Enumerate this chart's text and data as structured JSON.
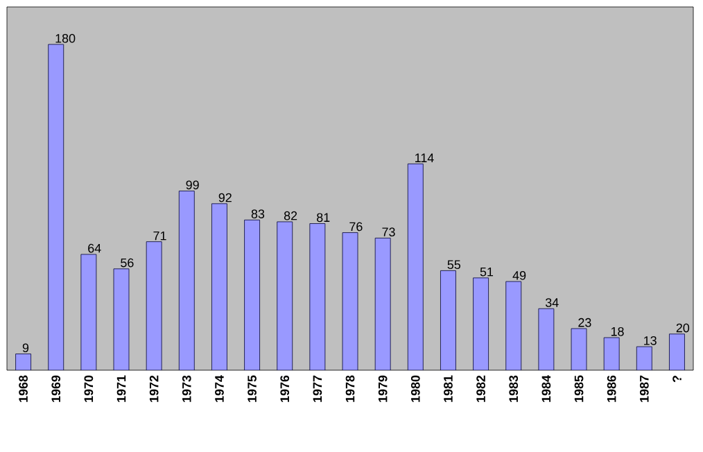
{
  "chart_data": {
    "type": "bar",
    "categories": [
      "1968",
      "1969",
      "1970",
      "1971",
      "1972",
      "1973",
      "1974",
      "1975",
      "1976",
      "1977",
      "1978",
      "1979",
      "1980",
      "1981",
      "1982",
      "1983",
      "1984",
      "1985",
      "1986",
      "1987",
      "?"
    ],
    "values": [
      9,
      180,
      64,
      56,
      71,
      99,
      92,
      83,
      82,
      81,
      76,
      73,
      114,
      55,
      51,
      49,
      34,
      23,
      18,
      13,
      20
    ],
    "color": "#9999ff",
    "data_labels": true
  }
}
